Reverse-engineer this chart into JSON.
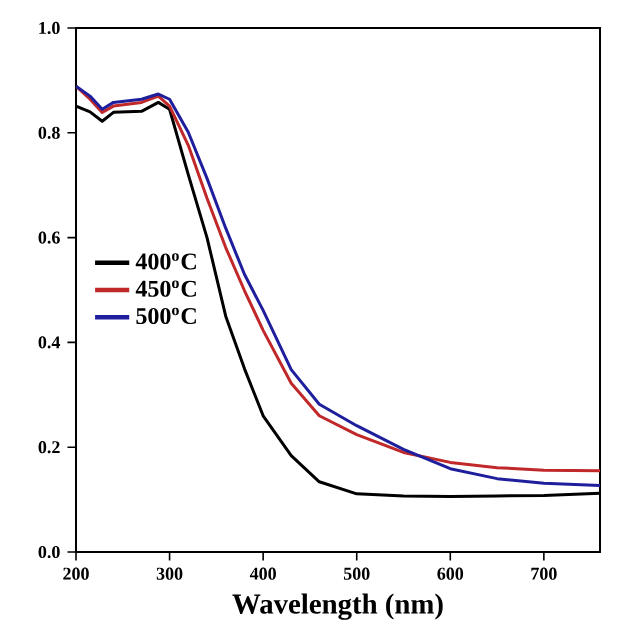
{
  "chart_data": {
    "type": "line",
    "xlabel": "Wavelength (nm)",
    "xlim": [
      200,
      760
    ],
    "xticks": [
      200,
      300,
      400,
      500,
      600,
      700
    ],
    "ylim": [
      0,
      1.0
    ],
    "yticks": [
      {
        "value": 0,
        "label": "0.0"
      },
      {
        "value": 0.2,
        "label": "0.2"
      },
      {
        "value": 0.4,
        "label": "0.4"
      },
      {
        "value": 0.6,
        "label": "0.6"
      },
      {
        "value": 0.8,
        "label": "0.8"
      },
      {
        "value": 1.0,
        "label": "1.0"
      }
    ],
    "legend": "left",
    "x": [
      200,
      215,
      228,
      240,
      270,
      288,
      300,
      320,
      340,
      360,
      380,
      400,
      430,
      460,
      500,
      550,
      600,
      650,
      700,
      760
    ],
    "series": [
      {
        "name": "400$^{o}$C",
        "color": "#000000",
        "values": [
          0.851,
          0.84,
          0.822,
          0.839,
          0.841,
          0.858,
          0.845,
          0.72,
          0.6,
          0.45,
          0.35,
          0.26,
          0.184,
          0.134,
          0.111,
          0.107,
          0.106,
          0.107,
          0.108,
          0.112
        ]
      },
      {
        "name": "450$^{o}$C",
        "color": "#c0282a",
        "values": [
          0.889,
          0.864,
          0.839,
          0.851,
          0.858,
          0.87,
          0.851,
          0.776,
          0.675,
          0.581,
          0.499,
          0.423,
          0.322,
          0.26,
          0.224,
          0.19,
          0.171,
          0.161,
          0.156,
          0.155
        ]
      },
      {
        "name": "500$^{o}$C",
        "color": "#1f1f9e",
        "values": [
          0.889,
          0.87,
          0.845,
          0.858,
          0.864,
          0.874,
          0.864,
          0.801,
          0.713,
          0.618,
          0.53,
          0.461,
          0.348,
          0.282,
          0.241,
          0.196,
          0.159,
          0.14,
          0.131,
          0.127
        ]
      }
    ]
  }
}
